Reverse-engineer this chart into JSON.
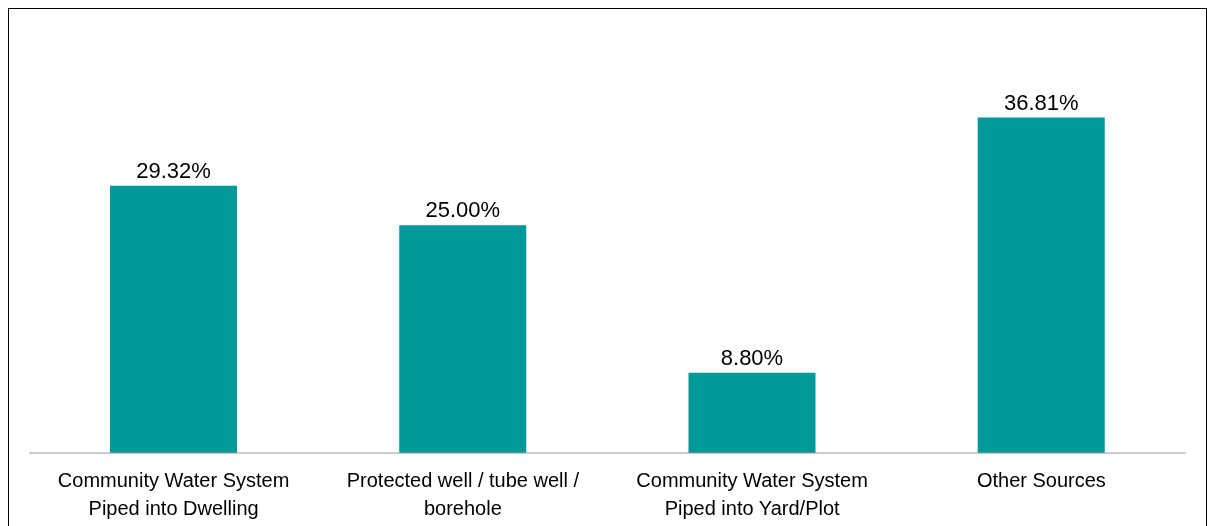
{
  "chart_data": {
    "type": "bar",
    "categories": [
      "Community Water System Piped into Dwelling",
      "Protected well / tube well / borehole",
      "Community Water System Piped into Yard/Plot",
      "Other Sources"
    ],
    "values": [
      29.32,
      25.0,
      8.8,
      36.81
    ],
    "color": "#009999",
    "data_labels": true,
    "value_labels": [
      "29.32%",
      "25.00%",
      "8.80%",
      "36.81%"
    ],
    "grid": false,
    "legend": false
  }
}
